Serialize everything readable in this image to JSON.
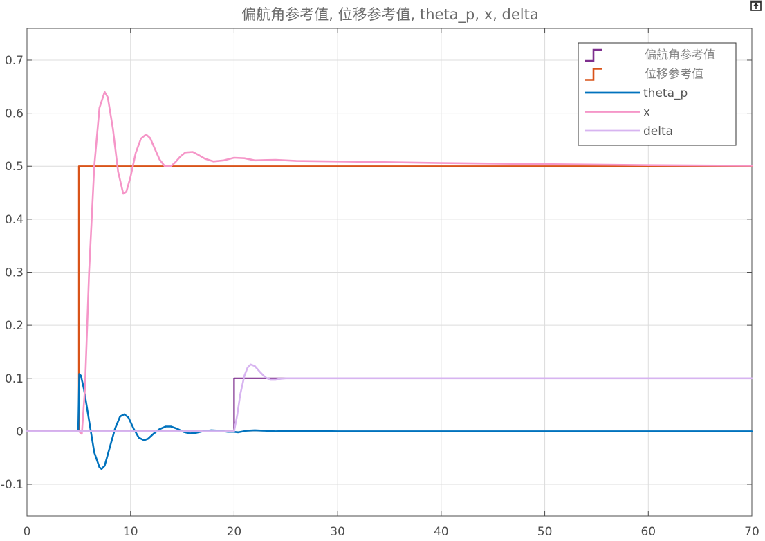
{
  "chart_data": {
    "type": "line",
    "title": "偏航角参考值, 位移参考值, theta_p, x, delta",
    "xlabel": "",
    "ylabel": "",
    "xlim": [
      0,
      70
    ],
    "ylim": [
      -0.16,
      0.76
    ],
    "xticks": [
      0,
      10,
      20,
      30,
      40,
      50,
      60,
      70
    ],
    "yticks": [
      -0.1,
      0,
      0.1,
      0.2,
      0.3,
      0.4,
      0.5,
      0.6,
      0.7
    ],
    "xtick_labels": [
      "0",
      "10",
      "20",
      "30",
      "40",
      "50",
      "60",
      "70"
    ],
    "ytick_labels": [
      "-0.1",
      "0",
      "0.1",
      "0.2",
      "0.3",
      "0.4",
      "0.5",
      "0.6",
      "0.7"
    ],
    "grid": true,
    "legend_position": "top-right",
    "series": [
      {
        "name": "偏航角参考值",
        "color": "#7e2f8e",
        "legend_style": "step",
        "x": [
          0,
          20,
          20,
          70
        ],
        "y": [
          0,
          0,
          0.1,
          0.1
        ]
      },
      {
        "name": "位移参考值",
        "color": "#d95319",
        "legend_style": "step",
        "x": [
          0,
          5,
          5,
          70
        ],
        "y": [
          0,
          0,
          0.5,
          0.5
        ]
      },
      {
        "name": "theta_p",
        "color": "#0072bd",
        "legend_style": "line",
        "x": [
          0,
          4.95,
          5.05,
          5.2,
          5.5,
          6,
          6.5,
          7,
          7.2,
          7.5,
          8,
          8.5,
          9,
          9.4,
          9.8,
          10.3,
          10.8,
          11.3,
          11.7,
          12.2,
          12.8,
          13.4,
          13.9,
          14.5,
          15.1,
          15.7,
          16.3,
          17,
          17.8,
          18.6,
          19.4,
          20,
          20.4,
          21.2,
          22,
          23,
          24,
          26,
          30,
          70
        ],
        "y": [
          0,
          0,
          0.108,
          0.105,
          0.08,
          0.02,
          -0.04,
          -0.068,
          -0.071,
          -0.065,
          -0.03,
          0.005,
          0.028,
          0.032,
          0.026,
          0.005,
          -0.012,
          -0.017,
          -0.014,
          -0.005,
          0.004,
          0.009,
          0.009,
          0.005,
          -0.001,
          -0.004,
          -0.003,
          0,
          0.002,
          0.001,
          -0.001,
          -0.001,
          -0.002,
          0.001,
          0.002,
          0.001,
          0,
          0.001,
          0,
          0
        ]
      },
      {
        "name": "x",
        "color": "#f596c8",
        "legend_style": "line",
        "x": [
          0,
          5,
          5.3,
          5.6,
          6,
          6.5,
          7,
          7.5,
          7.8,
          8.3,
          8.8,
          9.3,
          9.6,
          10,
          10.5,
          11,
          11.5,
          11.9,
          12.3,
          12.8,
          13.3,
          13.9,
          14.3,
          14.8,
          15.3,
          16,
          16.5,
          17.2,
          18,
          19,
          20,
          21,
          22,
          24,
          26,
          30,
          40,
          50,
          60,
          70
        ],
        "y": [
          0,
          0,
          -0.005,
          0.08,
          0.3,
          0.5,
          0.61,
          0.64,
          0.63,
          0.57,
          0.49,
          0.448,
          0.452,
          0.48,
          0.525,
          0.552,
          0.56,
          0.553,
          0.535,
          0.513,
          0.5,
          0.5,
          0.507,
          0.518,
          0.526,
          0.527,
          0.522,
          0.514,
          0.509,
          0.511,
          0.516,
          0.515,
          0.511,
          0.512,
          0.51,
          0.509,
          0.506,
          0.504,
          0.502,
          0.501
        ]
      },
      {
        "name": "delta",
        "color": "#d7b4f0",
        "legend_style": "line",
        "x": [
          0,
          20,
          20.3,
          20.6,
          21,
          21.3,
          21.6,
          22,
          22.5,
          23,
          23.5,
          24,
          24.5,
          25,
          26,
          27,
          30,
          70
        ],
        "y": [
          0,
          0,
          0.03,
          0.07,
          0.105,
          0.12,
          0.126,
          0.123,
          0.112,
          0.102,
          0.097,
          0.097,
          0.099,
          0.1,
          0.1,
          0.1,
          0.1,
          0.1
        ]
      }
    ]
  }
}
